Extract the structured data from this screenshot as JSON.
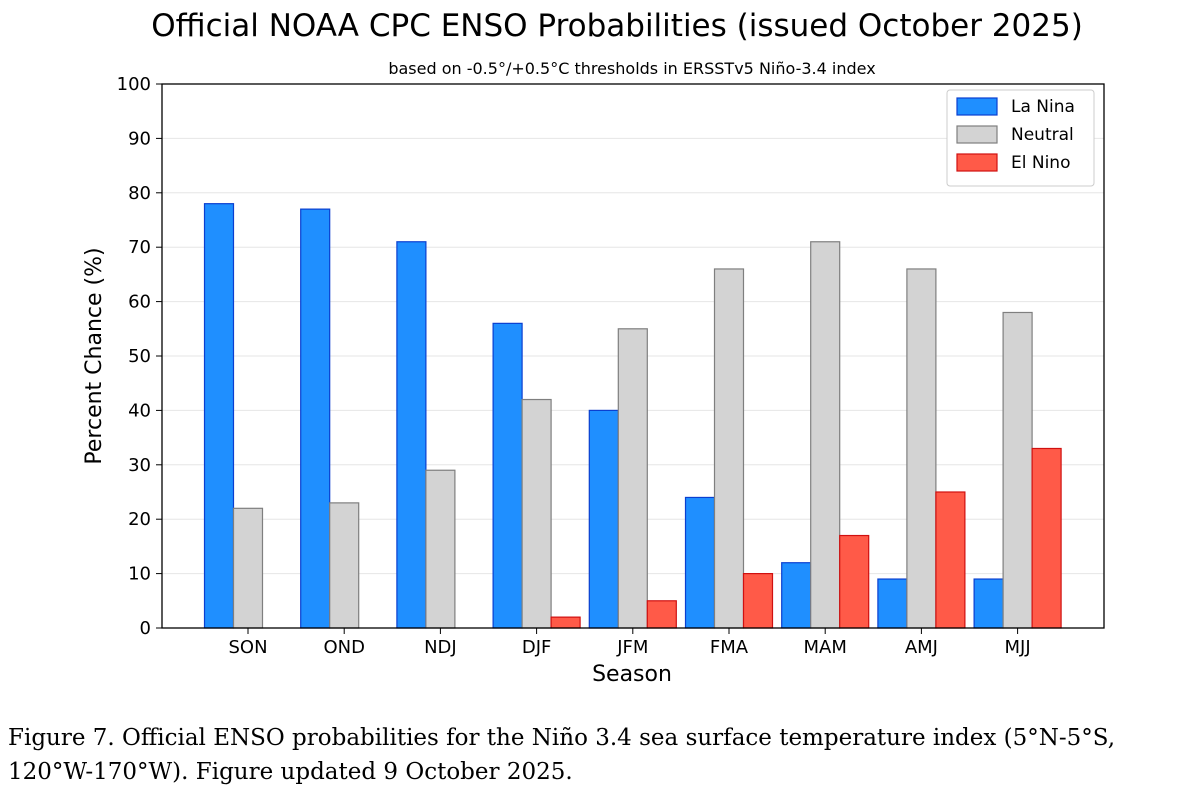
{
  "chart_data": {
    "type": "bar",
    "title": "Official NOAA CPC ENSO Probabilities (issued October 2025)",
    "subtitle": "based on -0.5°/+0.5°C thresholds in ERSSTv5 Niño-3.4 index",
    "xlabel": "Season",
    "ylabel": "Percent Chance (%)",
    "ylim": [
      0,
      100
    ],
    "yticks": [
      0,
      10,
      20,
      30,
      40,
      50,
      60,
      70,
      80,
      90,
      100
    ],
    "grid": true,
    "legend": "top-right",
    "categories": [
      "SON",
      "OND",
      "NDJ",
      "DJF",
      "JFM",
      "FMA",
      "MAM",
      "AMJ",
      "MJJ"
    ],
    "series": [
      {
        "name": "La Nina",
        "color": "#1f8fff",
        "edge": "#0a3fd0",
        "values": [
          78,
          77,
          71,
          56,
          40,
          24,
          12,
          9,
          9
        ]
      },
      {
        "name": "Neutral",
        "color": "#d3d3d3",
        "edge": "#7f7f7f",
        "values": [
          22,
          23,
          29,
          42,
          55,
          66,
          71,
          66,
          58
        ]
      },
      {
        "name": "El Nino",
        "color": "#ff5a48",
        "edge": "#d01010",
        "values": [
          0,
          0,
          0,
          2,
          5,
          10,
          17,
          25,
          33
        ]
      }
    ]
  },
  "caption": "Figure 7. Official ENSO probabilities for the Niño 3.4 sea surface temperature index (5°N-5°S, 120°W-170°W). Figure updated 9 October 2025."
}
